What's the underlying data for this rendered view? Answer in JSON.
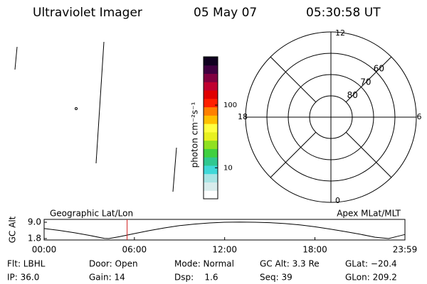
{
  "header": {
    "title": "Ultraviolet Imager",
    "date": "05 May 07",
    "time": "05:30:58 UT"
  },
  "colorbar": {
    "label": "photon cm⁻²s⁻¹",
    "log": true,
    "clim": [
      3.2,
      590
    ],
    "ticks": [
      10,
      100
    ],
    "colors": [
      "#ffffff",
      "#d8ecec",
      "#a8e4e4",
      "#40d8d8",
      "#30c890",
      "#40d040",
      "#90e020",
      "#e8f020",
      "#ffff40",
      "#ffc000",
      "#ff8000",
      "#ff2000",
      "#e00000",
      "#c00030",
      "#800040",
      "#400040",
      "#100020"
    ]
  },
  "polar": {
    "outer_lat": 50,
    "lat_rings": [
      80,
      70,
      60
    ],
    "mlt_labels": [
      {
        "value": 12,
        "label": "12"
      },
      {
        "value": 6,
        "label": "6"
      },
      {
        "value": 0,
        "label": "0"
      },
      {
        "value": 18,
        "label": "18"
      }
    ]
  },
  "altitude": {
    "y_label": "GC Alt",
    "left_label": "Geographic Lat/Lon",
    "right_label": "Apex MLat/MLT",
    "ylim": [
      1.8,
      9.0
    ],
    "yticks": [
      {
        "value": 9,
        "label": "9.0"
      },
      1.8
    ],
    "xlim": [
      0,
      23.983
    ],
    "xticks": [
      {
        "value": 0,
        "label": "00:00"
      },
      {
        "value": 6,
        "label": "06:00"
      },
      {
        "value": 12,
        "label": "12:00"
      },
      {
        "value": 18,
        "label": "18:00"
      },
      {
        "value": 23.983,
        "label": "23:59"
      }
    ],
    "hours": [
      0,
      1,
      2,
      3,
      4,
      4.3,
      5,
      6,
      7,
      8,
      9,
      10,
      11,
      12,
      13,
      14,
      15,
      16,
      17,
      18,
      19,
      20,
      21,
      22,
      22.9,
      23.5,
      23.98
    ],
    "values": [
      6.2,
      5.4,
      4.4,
      3.2,
      1.9,
      1.8,
      2.6,
      4.0,
      5.3,
      6.5,
      7.5,
      8.2,
      8.7,
      9.0,
      9.1,
      9.0,
      8.8,
      8.4,
      7.8,
      7.0,
      6.0,
      4.9,
      3.7,
      2.4,
      1.8,
      2.8,
      3.6
    ],
    "current_hour": 5.516,
    "current_color": "#d02020"
  },
  "footer": [
    [
      "Flt: LBHL",
      "IP: 36.0"
    ],
    [
      "Door: Open",
      "Gain: 14"
    ],
    [
      "Mode: Normal",
      "Dsp:    1.6"
    ],
    [
      "GC Alt: 3.3 Re",
      "Seq: 39"
    ],
    [
      "GLat: −20.4",
      "GLon: 209.2"
    ]
  ]
}
